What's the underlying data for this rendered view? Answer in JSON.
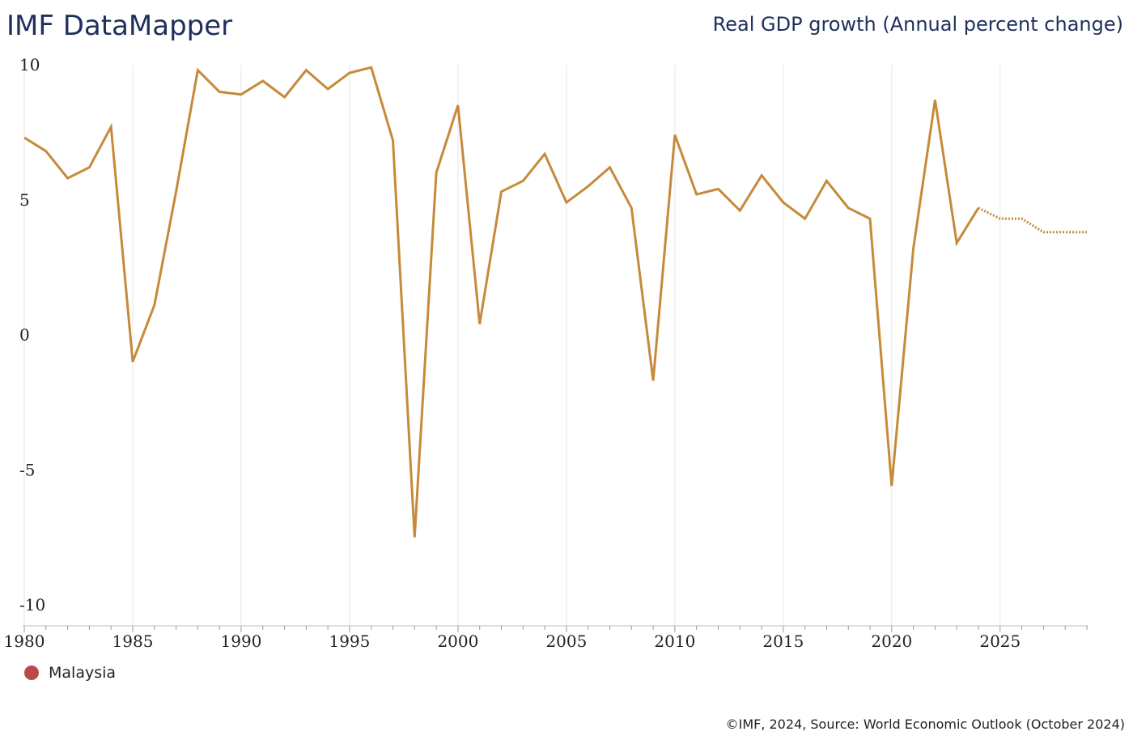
{
  "header": {
    "brand": "IMF DataMapper",
    "indicator_title": "Real GDP growth (Annual percent change)"
  },
  "legend": {
    "items": [
      {
        "label": "Malaysia",
        "color": "#b94a48"
      }
    ]
  },
  "footer": {
    "source": "©IMF, 2024, Source: World Economic Outlook (October 2024)"
  },
  "chart_data": {
    "type": "line",
    "title": "Real GDP growth (Annual percent change)",
    "xlabel": "",
    "ylabel": "",
    "xlim": [
      1980,
      2029
    ],
    "ylim": [
      -10,
      10
    ],
    "y_ticks": [
      10,
      5,
      0,
      -5,
      -10
    ],
    "x_ticks": [
      1980,
      1985,
      1990,
      1995,
      2000,
      2005,
      2010,
      2015,
      2020,
      2025
    ],
    "grid": "vertical",
    "legend_position": "bottom-left",
    "line_color": "#c68a3a",
    "projection_from": 2024,
    "series": [
      {
        "name": "Malaysia",
        "x": [
          1980,
          1981,
          1982,
          1983,
          1984,
          1985,
          1986,
          1987,
          1988,
          1989,
          1990,
          1991,
          1992,
          1993,
          1994,
          1995,
          1996,
          1997,
          1998,
          1999,
          2000,
          2001,
          2002,
          2003,
          2004,
          2005,
          2006,
          2007,
          2008,
          2009,
          2010,
          2011,
          2012,
          2013,
          2014,
          2015,
          2016,
          2017,
          2018,
          2019,
          2020,
          2021,
          2022,
          2023,
          2024,
          2025,
          2026,
          2027,
          2028,
          2029
        ],
        "values": [
          7.3,
          6.8,
          5.8,
          6.2,
          7.7,
          -1.0,
          1.1,
          5.3,
          9.8,
          9.0,
          8.9,
          9.4,
          8.8,
          9.8,
          9.1,
          9.7,
          9.9,
          7.2,
          -7.5,
          6.0,
          8.5,
          0.4,
          5.3,
          5.7,
          6.7,
          4.9,
          5.5,
          6.2,
          4.7,
          -1.7,
          7.4,
          5.2,
          5.4,
          4.6,
          5.9,
          4.9,
          4.3,
          5.7,
          4.7,
          4.3,
          -5.6,
          3.2,
          8.7,
          3.4,
          4.7,
          4.3,
          4.3,
          3.8,
          3.8,
          3.8
        ]
      }
    ]
  }
}
